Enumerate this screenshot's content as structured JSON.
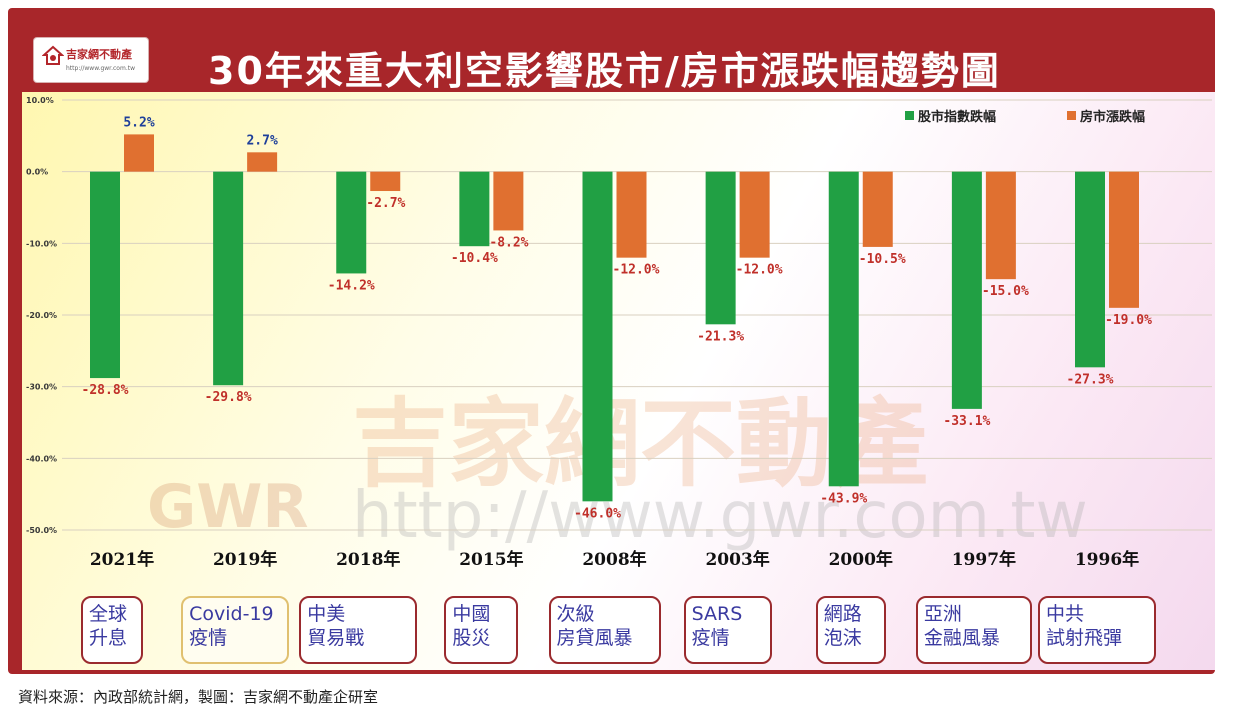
{
  "header": {
    "title": "30年來重大利空影響股市/房市漲跌幅趨勢圖",
    "logo_name": "吉家網不動產",
    "logo_url": "http://www.gwr.com.tw"
  },
  "watermark": {
    "brand": "吉家網不動產",
    "abbr": "GWR",
    "url": "http://www.gwr.com.tw"
  },
  "chart_data": {
    "type": "bar",
    "categories": [
      "2021年",
      "2019年",
      "2018年",
      "2015年",
      "2008年",
      "2003年",
      "2000年",
      "1997年",
      "1996年"
    ],
    "series": [
      {
        "name": "股市指數跌幅",
        "color": "#21a044",
        "values": [
          -28.8,
          -29.8,
          -14.2,
          -10.4,
          -46.0,
          -21.3,
          -43.9,
          -33.1,
          -27.3
        ]
      },
      {
        "name": "房市漲跌幅",
        "color": "#e07030",
        "values": [
          5.2,
          2.7,
          -2.7,
          -8.2,
          -12.0,
          -12.0,
          -10.5,
          -15.0,
          -19.0
        ]
      }
    ],
    "yticks": [
      "10.0%",
      "0.0%",
      "-10.0%",
      "-20.0%",
      "-30.0%",
      "-40.0%",
      "-50.0%"
    ],
    "ylim": [
      -50,
      10
    ],
    "legend_position": "top-right",
    "value_labels": {
      "stock": [
        "-28.8%",
        "-29.8%",
        "-14.2%",
        "-10.4%",
        "-46.0%",
        "-21.3%",
        "-43.9%",
        "-33.1%",
        "-27.3%"
      ],
      "house": [
        "5.2%",
        "2.7%",
        "-2.7%",
        "-8.2%",
        "-12.0%",
        "-12.0%",
        "-10.5%",
        "-15.0%",
        "-19.0%"
      ]
    }
  },
  "events": [
    {
      "line1": "全球",
      "line2": "升息"
    },
    {
      "line1": "Covid-19",
      "line2": "疫情"
    },
    {
      "line1": "中美",
      "line2": "貿易戰"
    },
    {
      "line1": "中國",
      "line2": "股災"
    },
    {
      "line1": "次級",
      "line2": "房貸風暴"
    },
    {
      "line1": "SARS",
      "line2": "疫情"
    },
    {
      "line1": "網路",
      "line2": "泡沫"
    },
    {
      "line1": "亞洲",
      "line2": "金融風暴"
    },
    {
      "line1": "中共",
      "line2": "試射飛彈"
    }
  ],
  "footer": {
    "source": "資料來源：內政部統計網，製圖：吉家網不動產企研室"
  }
}
